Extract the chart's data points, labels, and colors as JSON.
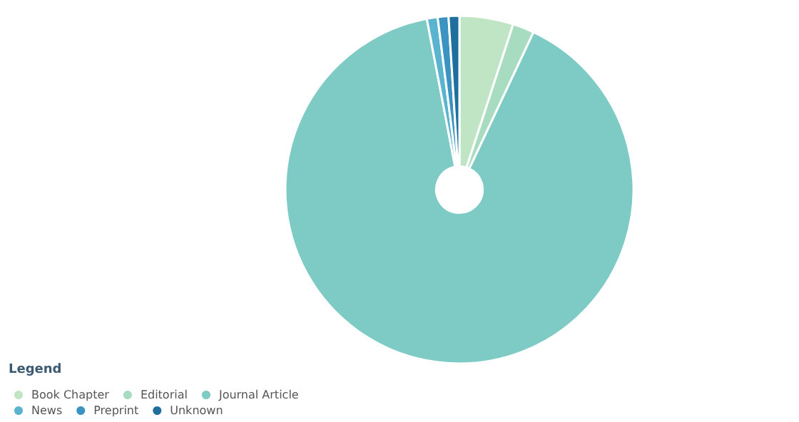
{
  "chart_data": {
    "type": "pie",
    "legend_title": "Legend",
    "legend": "bottom left",
    "categories": [
      "Book Chapter",
      "Editorial",
      "Journal Article",
      "News",
      "Preprint",
      "Unknown"
    ],
    "values": [
      5,
      2,
      90,
      1,
      1,
      1
    ],
    "colors": [
      "#bfe5c4",
      "#a8dcc0",
      "#7ecac5",
      "#5ab4cf",
      "#3a93c0",
      "#1f6f9e"
    ]
  }
}
